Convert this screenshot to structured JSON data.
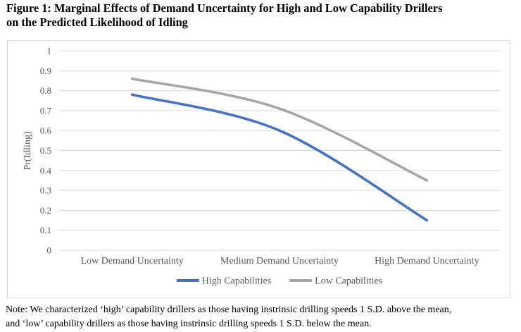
{
  "figure": {
    "title_lines": [
      "Figure 1: Marginal Effects of Demand Uncertainty for High and Low Capability Drillers",
      "on the Predicted Likelihood of Idling"
    ],
    "note_lines": [
      "Note: We characterized ‘high’ capability drillers as those having instrinsic drilling speeds 1 S.D. above the mean,",
      "and ‘low’ capability drillers as those having instrinsic drilling speeds 1 S.D. below the mean."
    ]
  },
  "chart_data": {
    "type": "line",
    "title": "",
    "xlabel": "",
    "ylabel": "Pr(Idling)",
    "categories": [
      "Low Demand Uncertainty",
      "Medium Demand Uncertainty",
      "High Demand Uncertainty"
    ],
    "series": [
      {
        "name": "High Capabilities",
        "color": "#4472C4",
        "values": [
          0.78,
          0.6,
          0.15
        ]
      },
      {
        "name": "Low Capabilities",
        "color": "#A6A6A6",
        "values": [
          0.86,
          0.71,
          0.35
        ]
      }
    ],
    "ylim": [
      0,
      1
    ],
    "ytick_values": [
      0,
      0.1,
      0.2,
      0.3,
      0.4,
      0.5,
      0.6,
      0.7,
      0.8,
      0.9,
      1
    ],
    "ytick_labels": [
      "0",
      "0.1",
      "0.2",
      "0.3",
      "0.4",
      "0.5",
      "0.6",
      "0.7",
      "0.8",
      "0.9",
      "1"
    ],
    "grid": true,
    "smooth": true,
    "legend_position": "bottom",
    "colors": {
      "gridline": "#D9D9D9",
      "axis_text": "#595959",
      "border": "#D9D9D9"
    }
  }
}
